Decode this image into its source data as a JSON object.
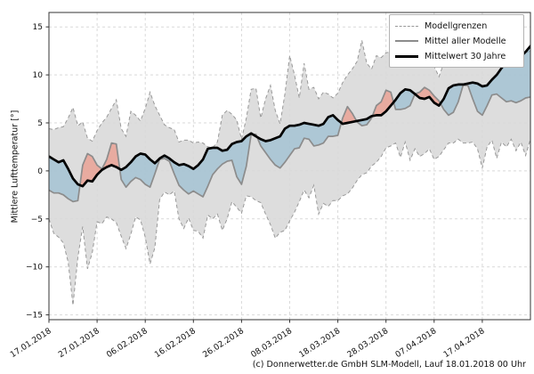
{
  "figure": {
    "ylabel": "Mittlere Lufttemperatur [°]",
    "footer": "(c) Donnerwetter.de GmbH SLM-Modell, Lauf 18.01.2018 00 Uhr",
    "legend": {
      "entries": [
        {
          "label": "Modellgrenzen",
          "style": "dashed-gray"
        },
        {
          "label": "Mittel aller Modelle",
          "style": "solid-gray"
        },
        {
          "label": "Mittelwert 30 Jahre",
          "style": "solid-black-thick"
        }
      ]
    }
  },
  "chart_data": {
    "type": "line",
    "title": "",
    "ylabel": "Mittlere Lufttemperatur [°]",
    "xlabel": "",
    "x_unit": "days since 17.01.2018, daily samples",
    "x_tick_days": [
      0,
      10,
      20,
      30,
      40,
      50,
      60,
      70,
      80,
      90
    ],
    "x_tick_labels": [
      "17.01.2018",
      "27.01.2018",
      "06.02.2018",
      "16.02.2018",
      "26.02.2018",
      "08.03.2018",
      "18.03.2018",
      "28.03.2018",
      "07.04.2018",
      "17.04.2018"
    ],
    "ylim": [
      -15.5,
      16.5
    ],
    "yticks": [
      -15,
      -10,
      -5,
      0,
      5,
      10,
      15
    ],
    "grid": true,
    "legend_position": "top-right",
    "fills": {
      "band": "gray band between upper and lower model bounds (Modellgrenzen)",
      "blue": "between Mittel aller Modelle and Mittelwert 30 Jahre where model mean is colder",
      "red": "between Mittel aller Modelle and Mittelwert 30 Jahre where model mean is warmer"
    },
    "colors": {
      "band_fill": "rgba(180,180,180,0.45)",
      "band_edge": "#999999",
      "blue_fill": "rgba(125,178,205,0.5)",
      "red_fill": "rgba(240,130,110,0.55)",
      "model_mean_line": "#8c8c8c",
      "mean30_line": "#000000",
      "grid": "#d9d9d9",
      "spine": "#333333"
    },
    "series": [
      {
        "name": "Modellgrenzen (obere Grenze)",
        "role": "upper_bound",
        "line": "dashed gray",
        "values": [
          4.4,
          4.3,
          4.5,
          4.6,
          5.5,
          6.6,
          4.7,
          5.1,
          3.4,
          3.1,
          4.2,
          5.0,
          5.6,
          6.5,
          7.4,
          4.4,
          3.6,
          6.2,
          5.8,
          5.2,
          6.5,
          8.2,
          6.8,
          5.8,
          4.8,
          4.5,
          4.3,
          3.0,
          3.2,
          3.2,
          2.9,
          3.0,
          2.9,
          2.5,
          2.4,
          3.0,
          5.8,
          6.3,
          5.9,
          5.3,
          3.3,
          5.5,
          8.5,
          8.6,
          5.5,
          7.5,
          8.9,
          6.3,
          4.9,
          8.0,
          12.0,
          10.0,
          7.6,
          11.2,
          8.5,
          8.7,
          7.5,
          8.2,
          8.0,
          7.6,
          8.1,
          9.2,
          10.0,
          10.6,
          11.4,
          13.6,
          11.2,
          10.6,
          12.0,
          11.8,
          12.3,
          12.4,
          12.2,
          12.4,
          12.7,
          12.2,
          11.0,
          11.8,
          11.5,
          12.1,
          10.9,
          9.8,
          11.2,
          12.1,
          12.0,
          12.1,
          12.4,
          12.4,
          12.1,
          12.3,
          11.7,
          11.9,
          11.6,
          11.3,
          11.2,
          11.4,
          11.7,
          11.9,
          12.1,
          12.3,
          12.5
        ]
      },
      {
        "name": "Modellgrenzen (untere Grenze)",
        "role": "lower_bound",
        "line": "dashed gray",
        "values": [
          -5.0,
          -6.5,
          -6.9,
          -7.5,
          -9.5,
          -14.0,
          -9.0,
          -5.8,
          -10.2,
          -8.5,
          -5.3,
          -5.5,
          -4.8,
          -5.0,
          -5.4,
          -6.8,
          -8.1,
          -6.6,
          -4.8,
          -5.1,
          -6.9,
          -9.7,
          -8.0,
          -3.0,
          -2.2,
          -2.5,
          -2.1,
          -5.0,
          -6.0,
          -4.9,
          -6.2,
          -6.3,
          -7.0,
          -4.6,
          -5.0,
          -4.5,
          -6.2,
          -5.0,
          -3.2,
          -3.8,
          -4.4,
          -2.6,
          -2.7,
          -3.1,
          -3.3,
          -4.5,
          -5.6,
          -7.0,
          -6.4,
          -6.2,
          -5.2,
          -4.3,
          -3.2,
          -2.0,
          -2.8,
          -1.5,
          -4.5,
          -3.4,
          -3.7,
          -3.1,
          -3.1,
          -2.6,
          -2.4,
          -1.8,
          -1.0,
          -0.4,
          -0.2,
          0.5,
          0.9,
          1.5,
          2.4,
          2.6,
          2.9,
          1.4,
          3.0,
          1.1,
          2.3,
          1.5,
          1.8,
          2.3,
          1.2,
          1.5,
          2.2,
          2.9,
          2.9,
          3.3,
          2.9,
          2.9,
          3.0,
          2.3,
          0.3,
          2.5,
          3.2,
          1.3,
          3.0,
          2.5,
          3.3,
          2.1,
          3.0,
          1.6,
          3.3
        ]
      },
      {
        "name": "Mittel aller Modelle",
        "role": "model_mean",
        "line": "solid gray",
        "values": [
          -2.0,
          -2.3,
          -2.3,
          -2.5,
          -2.9,
          -3.2,
          -3.1,
          0.6,
          1.8,
          1.5,
          0.6,
          0.2,
          1.2,
          2.9,
          2.8,
          -0.9,
          -1.7,
          -1.1,
          -0.7,
          -0.9,
          -1.4,
          -1.7,
          -0.3,
          1.2,
          1.3,
          1.0,
          -0.3,
          -1.5,
          -2.0,
          -2.4,
          -2.1,
          -2.4,
          -2.7,
          -1.6,
          -0.4,
          0.2,
          0.7,
          1.0,
          1.1,
          -0.6,
          -1.4,
          0.5,
          3.8,
          3.8,
          2.6,
          1.9,
          1.2,
          0.6,
          0.3,
          0.9,
          1.6,
          2.3,
          2.4,
          3.4,
          3.3,
          2.6,
          2.7,
          2.9,
          3.6,
          3.6,
          3.7,
          5.5,
          6.7,
          6.0,
          5.1,
          4.7,
          4.8,
          5.5,
          6.8,
          7.2,
          8.4,
          8.2,
          6.4,
          6.4,
          6.5,
          6.8,
          8.0,
          8.2,
          8.7,
          8.4,
          7.8,
          7.3,
          6.4,
          5.8,
          6.1,
          7.2,
          8.9,
          8.9,
          7.5,
          6.2,
          5.8,
          6.8,
          7.9,
          8.0,
          7.6,
          7.2,
          7.3,
          7.1,
          7.3,
          7.6,
          7.7
        ]
      },
      {
        "name": "Mittelwert 30 Jahre",
        "role": "climate_mean_30y",
        "line": "solid black thick",
        "values": [
          1.5,
          1.2,
          0.9,
          1.1,
          0.2,
          -0.8,
          -1.4,
          -1.6,
          -1.0,
          -1.1,
          -0.4,
          0.1,
          0.4,
          0.6,
          0.4,
          0.1,
          0.4,
          0.9,
          1.5,
          1.8,
          1.7,
          1.2,
          0.8,
          1.3,
          1.6,
          1.3,
          0.9,
          0.6,
          0.7,
          0.5,
          0.2,
          0.6,
          1.2,
          2.3,
          2.4,
          2.4,
          2.1,
          2.2,
          2.8,
          3.0,
          3.1,
          3.6,
          3.9,
          3.6,
          3.3,
          3.1,
          3.2,
          3.4,
          3.6,
          4.4,
          4.7,
          4.7,
          4.8,
          5.0,
          4.9,
          4.8,
          4.7,
          4.9,
          5.6,
          5.8,
          5.3,
          4.9,
          5.0,
          5.1,
          5.2,
          5.3,
          5.4,
          5.7,
          5.8,
          5.8,
          6.2,
          6.8,
          7.4,
          8.1,
          8.5,
          8.4,
          8.0,
          7.6,
          7.5,
          7.7,
          7.1,
          6.8,
          7.5,
          8.6,
          8.9,
          9.0,
          9.0,
          9.1,
          9.2,
          9.1,
          8.8,
          8.9,
          9.5,
          10.0,
          10.7,
          11.3,
          11.6,
          11.8,
          11.9,
          12.4,
          13.0
        ]
      }
    ]
  }
}
